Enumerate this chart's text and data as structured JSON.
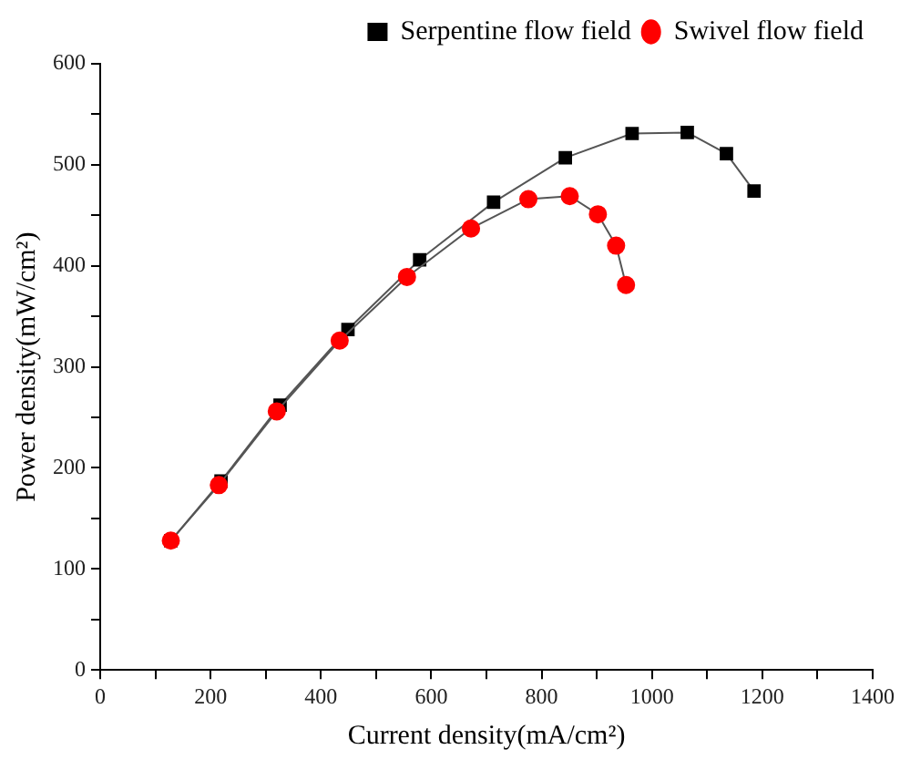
{
  "chart_data": {
    "type": "line",
    "xlabel": "Current density(mA/cm²)",
    "ylabel": "Power density(mW/cm²)",
    "xlim": [
      0,
      1400
    ],
    "ylim": [
      0,
      600
    ],
    "xticks": [
      0,
      {
        "value": 100,
        "label": null
      },
      200,
      {
        "value": 300,
        "label": null
      },
      400,
      {
        "value": 500,
        "label": null
      },
      600,
      {
        "value": 700,
        "label": null
      },
      800,
      {
        "value": 900,
        "label": null
      },
      1000,
      {
        "value": 1100,
        "label": null
      },
      1200,
      {
        "value": 1300,
        "label": null
      },
      1400
    ],
    "yticks": [
      0,
      {
        "value": 50,
        "label": null
      },
      100,
      {
        "value": 150,
        "label": null
      },
      200,
      {
        "value": 250,
        "label": null
      },
      300,
      {
        "value": 350,
        "label": null
      },
      400,
      {
        "value": 450,
        "label": null
      },
      500,
      {
        "value": 550,
        "label": null
      },
      600
    ],
    "grid": false,
    "legend": "top right",
    "line_style": "solid",
    "series": [
      {
        "name": "Serpentine flow field",
        "color": "#000000",
        "marker": "square",
        "x": [
          128,
          219,
          326,
          449,
          579,
          713,
          843,
          964,
          1064,
          1135,
          1185
        ],
        "values": [
          128,
          187,
          262,
          337,
          406,
          463,
          507,
          531,
          532,
          511,
          474
        ]
      },
      {
        "name": "Swivel flow field",
        "color": "#ff0000",
        "marker": "circle",
        "x": [
          128,
          215,
          320,
          434,
          556,
          672,
          776,
          851,
          902,
          935,
          953
        ],
        "values": [
          128,
          183,
          256,
          326,
          389,
          437,
          466,
          469,
          451,
          420,
          381
        ]
      }
    ]
  }
}
